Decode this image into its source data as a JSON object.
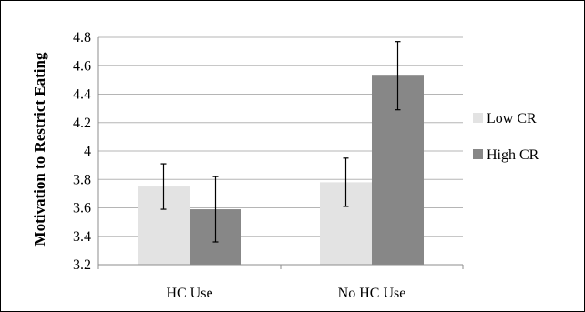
{
  "chart_data": {
    "type": "bar",
    "categories": [
      "HC Use",
      "No HC Use"
    ],
    "series": [
      {
        "name": "Low CR",
        "values": [
          3.75,
          3.78
        ],
        "error_low": [
          3.59,
          3.61
        ],
        "error_high": [
          3.91,
          3.95
        ]
      },
      {
        "name": "High CR",
        "values": [
          3.59,
          4.53
        ],
        "error_low": [
          3.36,
          4.29
        ],
        "error_high": [
          3.82,
          4.77
        ]
      }
    ],
    "ylabel": "Motivation to Restrict Eating",
    "xlabel": "",
    "ylim": [
      3.2,
      4.8
    ],
    "yticks": [
      "3.2",
      "3.4",
      "3.6",
      "3.8",
      "4",
      "4.2",
      "4.4",
      "4.6",
      "4.8"
    ],
    "grid": "horizontal",
    "legend_position": "right",
    "colors": {
      "Low CR": "#e3e3e3",
      "High CR": "#878787",
      "grid": "#b5b5b5",
      "errorbar": "#000000"
    }
  }
}
